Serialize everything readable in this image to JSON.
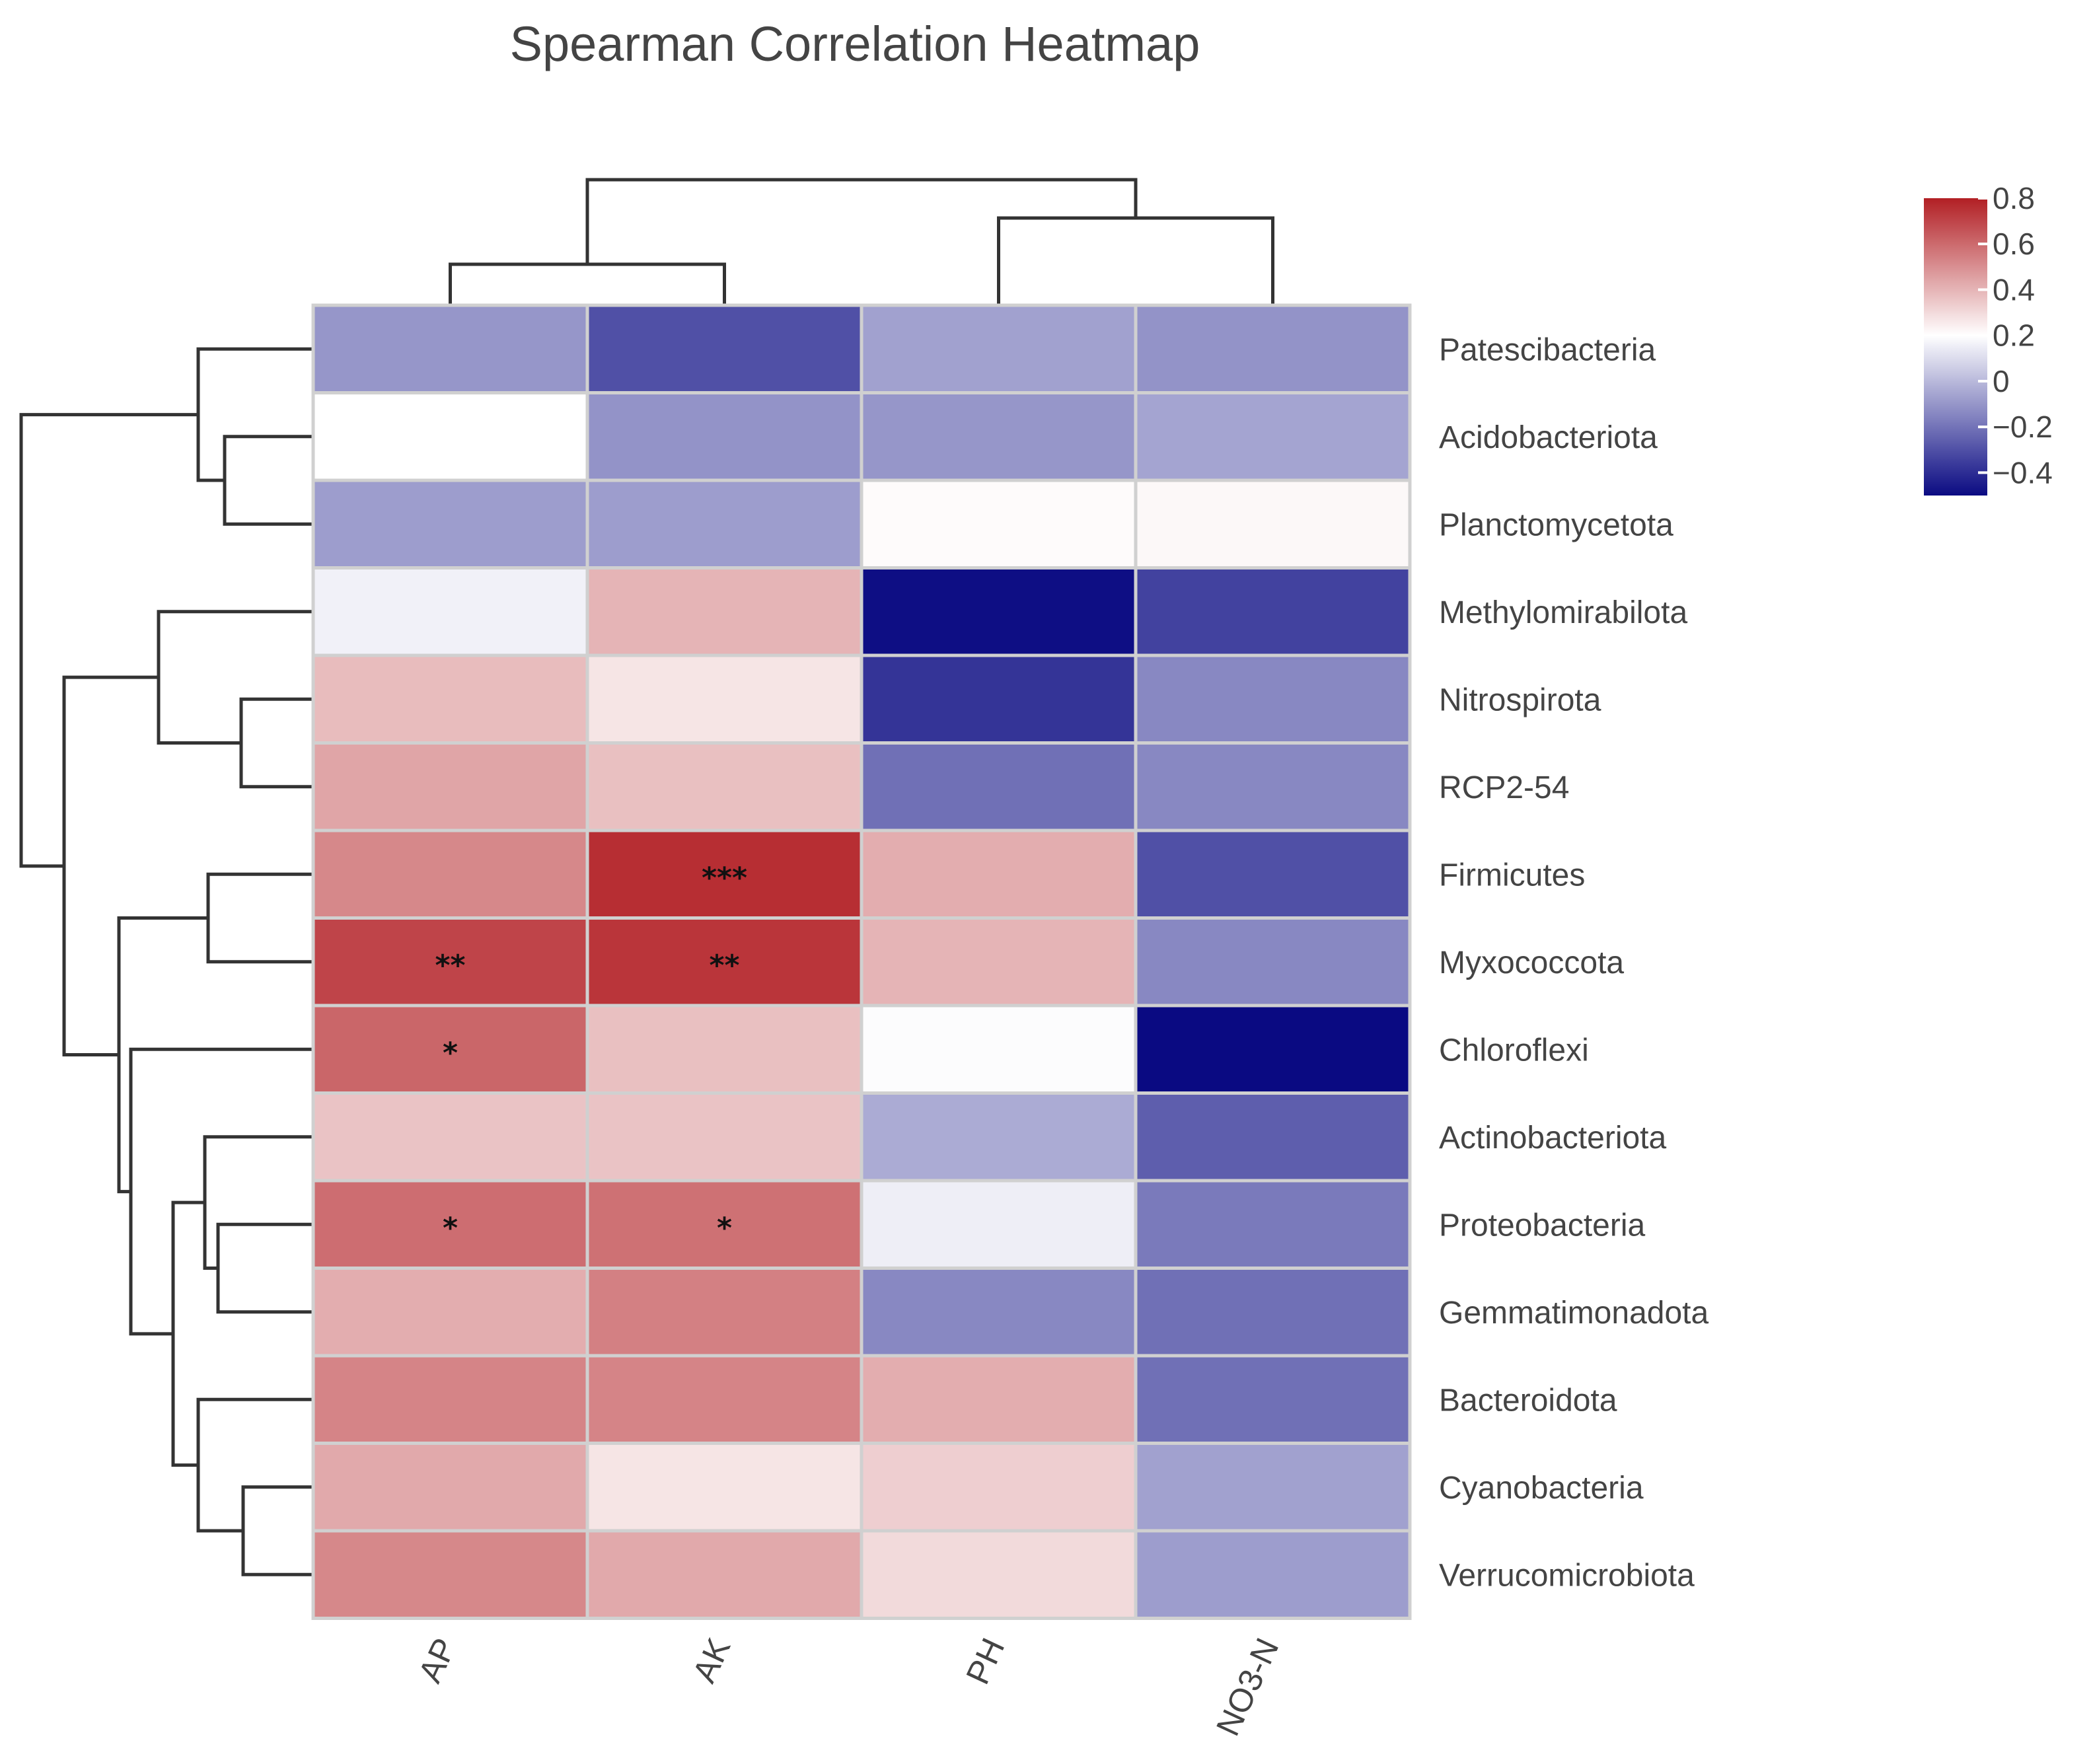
{
  "chart_data": {
    "type": "heatmap",
    "title": "Spearman Correlation Heatmap",
    "columns": [
      "AP",
      "AK",
      "PH",
      "NO3-N"
    ],
    "rows": [
      "Patescibacteria",
      "Acidobacteriota",
      "Planctomycetota",
      "Methylomirabilota",
      "Nitrospirota",
      "RCP2-54",
      "Firmicutes",
      "Myxococcota",
      "Chloroflexi",
      "Actinobacteriota",
      "Proteobacteria",
      "Gemmatimonadota",
      "Bacteroidota",
      "Cyanobacteria",
      "Verrucomicrobiota"
    ],
    "values": [
      [
        -0.1,
        -0.3,
        -0.07,
        -0.11
      ],
      [
        0.2,
        -0.11,
        -0.1,
        -0.06
      ],
      [
        -0.08,
        -0.08,
        0.21,
        0.22
      ],
      [
        0.16,
        0.4,
        -0.49,
        -0.34
      ],
      [
        0.38,
        0.27,
        -0.38,
        -0.14
      ],
      [
        0.44,
        0.37,
        -0.21,
        -0.14
      ],
      [
        0.52,
        0.76,
        0.42,
        -0.3
      ],
      [
        0.7,
        0.74,
        0.4,
        -0.14
      ],
      [
        0.61,
        0.37,
        0.19,
        -0.5
      ],
      [
        0.36,
        0.36,
        -0.04,
        -0.26
      ],
      [
        0.59,
        0.58,
        0.15,
        -0.18
      ],
      [
        0.42,
        0.54,
        -0.14,
        -0.21
      ],
      [
        0.53,
        0.53,
        0.42,
        -0.21
      ],
      [
        0.43,
        0.27,
        0.33,
        -0.07
      ],
      [
        0.52,
        0.43,
        0.3,
        -0.08
      ]
    ],
    "significance": [
      [
        "",
        "",
        "",
        ""
      ],
      [
        "",
        "",
        "",
        ""
      ],
      [
        "",
        "",
        "",
        ""
      ],
      [
        "",
        "",
        "",
        ""
      ],
      [
        "",
        "",
        "",
        ""
      ],
      [
        "",
        "",
        "",
        ""
      ],
      [
        "",
        "***",
        "",
        ""
      ],
      [
        "**",
        "**",
        "",
        ""
      ],
      [
        "*",
        "",
        "",
        ""
      ],
      [
        "",
        "",
        "",
        ""
      ],
      [
        "*",
        "*",
        "",
        ""
      ],
      [
        "",
        "",
        "",
        ""
      ],
      [
        "",
        "",
        "",
        ""
      ],
      [
        "",
        "",
        "",
        ""
      ],
      [
        "",
        "",
        "",
        ""
      ]
    ],
    "colorbar": {
      "ticks": [
        0.8,
        0.6,
        0.4,
        0.2,
        0,
        -0.2,
        -0.4
      ],
      "tick_labels": [
        "0.8",
        "0.6",
        "0.4",
        "0.2",
        "0",
        "−0.2",
        "−0.4"
      ],
      "range": [
        -0.5,
        0.8
      ],
      "colors": {
        "low": "#0a0a82",
        "mid": "#ffffff",
        "high": "#b21f24"
      },
      "mid_value": 0.2
    },
    "dendrogram_rows": true,
    "dendrogram_columns": true
  }
}
